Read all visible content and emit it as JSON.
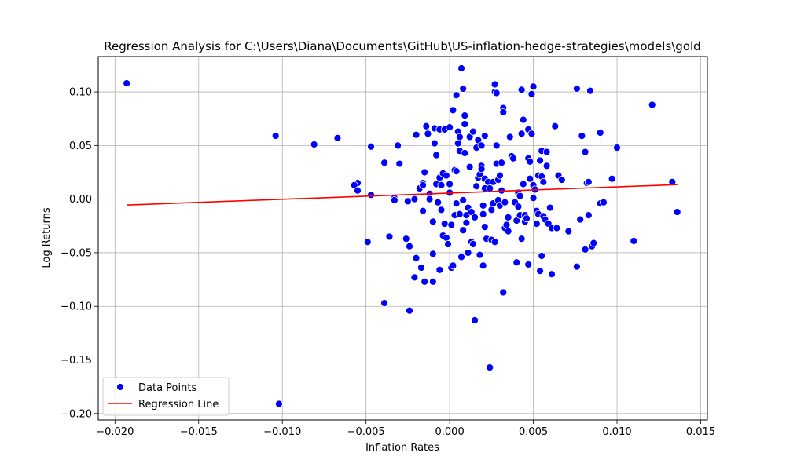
{
  "chart_data": {
    "type": "scatter",
    "title": "Regression Analysis for C:\\Users\\Diana\\Documents\\GitHub\\US-inflation-hedge-strategies\\models\\gold",
    "xlabel": "Inflation Rates",
    "ylabel": "Log Returns",
    "xlim": [
      -0.021,
      0.0154
    ],
    "ylim": [
      -0.206,
      0.133
    ],
    "xticks": [
      -0.02,
      -0.015,
      -0.01,
      -0.005,
      0.0,
      0.005,
      0.01,
      0.015
    ],
    "xtick_labels": [
      "−0.020",
      "−0.015",
      "−0.010",
      "−0.005",
      "0.000",
      "0.005",
      "0.010",
      "0.015"
    ],
    "yticks": [
      -0.2,
      -0.15,
      -0.1,
      -0.05,
      0.0,
      0.05,
      0.1
    ],
    "ytick_labels": [
      "−0.20",
      "−0.15",
      "−0.10",
      "−0.05",
      "0.00",
      "0.05",
      "0.10"
    ],
    "grid": true,
    "legend_position": "lower-left",
    "colors": {
      "points": "#0000ff",
      "line": "#ff0000"
    },
    "series": [
      {
        "name": "Data Points",
        "kind": "scatter",
        "points": [
          [
            -0.0193,
            0.108
          ],
          [
            -0.0104,
            0.059
          ],
          [
            -0.0081,
            0.051
          ],
          [
            -0.0067,
            0.057
          ],
          [
            -0.0102,
            -0.191
          ],
          [
            -0.0055,
            0.015
          ],
          [
            -0.0057,
            0.013
          ],
          [
            -0.0055,
            0.008
          ],
          [
            -0.0049,
            -0.04
          ],
          [
            -0.0047,
            0.049
          ],
          [
            -0.0047,
            0.004
          ],
          [
            -0.0039,
            0.034
          ],
          [
            -0.0039,
            -0.097
          ],
          [
            -0.0036,
            -0.035
          ],
          [
            -0.0033,
            0.001
          ],
          [
            -0.0033,
            -0.001
          ],
          [
            -0.0031,
            0.05
          ],
          [
            -0.003,
            0.033
          ],
          [
            -0.0026,
            -0.037
          ],
          [
            -0.0025,
            -0.002
          ],
          [
            -0.0024,
            -0.044
          ],
          [
            -0.0024,
            -0.104
          ],
          [
            -0.0021,
            0.0
          ],
          [
            -0.0021,
            -0.073
          ],
          [
            -0.002,
            -0.055
          ],
          [
            -0.002,
            0.06
          ],
          [
            -0.0018,
            0.01
          ],
          [
            -0.0017,
            -0.064
          ],
          [
            -0.0016,
            0.015
          ],
          [
            -0.0016,
            0.013
          ],
          [
            -0.0016,
            -0.011
          ],
          [
            -0.0015,
            -0.077
          ],
          [
            -0.0014,
            0.068
          ],
          [
            -0.0013,
            0.061
          ],
          [
            -0.0012,
            0.005
          ],
          [
            -0.0015,
            0.025
          ],
          [
            -0.0012,
            0.0
          ],
          [
            -0.001,
            -0.077
          ],
          [
            -0.001,
            -0.021
          ],
          [
            -0.001,
            -0.051
          ],
          [
            -0.0009,
            0.066
          ],
          [
            -0.0009,
            0.052
          ],
          [
            -0.0008,
            0.041
          ],
          [
            -0.0008,
            0.014
          ],
          [
            -0.0007,
            -0.003
          ],
          [
            -0.0006,
            -0.066
          ],
          [
            -0.0006,
            0.065
          ],
          [
            -0.0006,
            0.02
          ],
          [
            -0.0005,
            -0.01
          ],
          [
            -0.0005,
            0.013
          ],
          [
            -0.0004,
            0.024
          ],
          [
            -0.0004,
            -0.034
          ],
          [
            -0.0003,
            0.065
          ],
          [
            -0.0003,
            -0.023
          ],
          [
            -0.0002,
            0.022
          ],
          [
            -0.0002,
            -0.036
          ],
          [
            -0.0001,
            -0.042
          ],
          [
            0.0,
            0.067
          ],
          [
            0.0,
            0.014
          ],
          [
            0.0,
            0.006
          ],
          [
            0.0001,
            -0.024
          ],
          [
            0.0001,
            -0.064
          ],
          [
            0.0002,
            -0.062
          ],
          [
            0.0002,
            0.083
          ],
          [
            0.0003,
            0.027
          ],
          [
            0.0003,
            -0.015
          ],
          [
            0.0004,
            0.097
          ],
          [
            0.0004,
            0.026
          ],
          [
            0.0004,
            -0.004
          ],
          [
            0.0005,
            0.052
          ],
          [
            0.0005,
            0.063
          ],
          [
            0.0006,
            0.045
          ],
          [
            0.0006,
            0.058
          ],
          [
            0.0006,
            -0.014
          ],
          [
            0.0007,
            0.122
          ],
          [
            0.0007,
            -0.054
          ],
          [
            0.0008,
            0.103
          ],
          [
            0.0008,
            -0.001
          ],
          [
            0.0008,
            -0.029
          ],
          [
            0.0009,
            0.078
          ],
          [
            0.0009,
            0.07
          ],
          [
            0.0009,
            0.043
          ],
          [
            0.001,
            -0.015
          ],
          [
            0.001,
            -0.022
          ],
          [
            0.0011,
            -0.008
          ],
          [
            0.0011,
            -0.05
          ],
          [
            0.0012,
            0.058
          ],
          [
            0.0012,
            0.03
          ],
          [
            0.0013,
            -0.012
          ],
          [
            0.0013,
            -0.04
          ],
          [
            0.0014,
            0.063
          ],
          [
            0.0014,
            -0.042
          ],
          [
            0.0015,
            -0.113
          ],
          [
            0.0015,
            -0.017
          ],
          [
            0.0016,
            0.048
          ],
          [
            0.0016,
            0.012
          ],
          [
            0.0017,
            0.055
          ],
          [
            0.0017,
            0.02
          ],
          [
            0.0018,
            0.023
          ],
          [
            0.0018,
            -0.052
          ],
          [
            0.0019,
            0.05
          ],
          [
            0.0019,
            0.031
          ],
          [
            0.0019,
            0.028
          ],
          [
            0.002,
            -0.006
          ],
          [
            0.002,
            -0.014
          ],
          [
            0.002,
            -0.062
          ],
          [
            0.0021,
            0.059
          ],
          [
            0.0021,
            0.019
          ],
          [
            0.0021,
            0.01
          ],
          [
            0.0021,
            -0.026
          ],
          [
            0.0022,
            -0.037
          ],
          [
            0.0023,
            0.016
          ],
          [
            0.0024,
            0.01
          ],
          [
            0.0024,
            -0.157
          ],
          [
            0.0025,
            -0.038
          ],
          [
            0.0025,
            -0.01
          ],
          [
            0.0026,
            0.016
          ],
          [
            0.0026,
            -0.004
          ],
          [
            0.0027,
            0.107
          ],
          [
            0.0027,
            0.1
          ],
          [
            0.0027,
            -0.04
          ],
          [
            0.0028,
            0.099
          ],
          [
            0.0028,
            0.05
          ],
          [
            0.0028,
            0.033
          ],
          [
            0.0029,
            0.018
          ],
          [
            0.0029,
            -0.001
          ],
          [
            0.003,
            0.022
          ],
          [
            0.003,
            -0.006
          ],
          [
            0.0031,
            0.034
          ],
          [
            0.0031,
            0.008
          ],
          [
            0.0032,
            0.085
          ],
          [
            0.0032,
            0.081
          ],
          [
            0.0032,
            -0.087
          ],
          [
            0.0033,
            -0.027
          ],
          [
            0.0033,
            -0.003
          ],
          [
            0.0034,
            -0.024
          ],
          [
            0.0035,
            -0.03
          ],
          [
            0.0035,
            -0.017
          ],
          [
            0.0036,
            0.058
          ],
          [
            0.0037,
            0.04
          ],
          [
            0.0038,
            0.038
          ],
          [
            0.0039,
            -0.003
          ],
          [
            0.004,
            -0.059
          ],
          [
            0.004,
            -0.02
          ],
          [
            0.0041,
            0.006
          ],
          [
            0.0041,
            -0.007
          ],
          [
            0.0042,
            0.003
          ],
          [
            0.0042,
            -0.015
          ],
          [
            0.0043,
            0.102
          ],
          [
            0.0043,
            0.061
          ],
          [
            0.0043,
            -0.037
          ],
          [
            0.0044,
            0.074
          ],
          [
            0.0044,
            0.014
          ],
          [
            0.0045,
            -0.015
          ],
          [
            0.0045,
            -0.021
          ],
          [
            0.0046,
            -0.018
          ],
          [
            0.0047,
            0.065
          ],
          [
            0.0047,
            0.038
          ],
          [
            0.0047,
            -0.061
          ],
          [
            0.0048,
            0.035
          ],
          [
            0.0048,
            0.019
          ],
          [
            0.0049,
            0.098
          ],
          [
            0.0049,
            0.061
          ],
          [
            0.005,
            0.105
          ],
          [
            0.005,
            0.013
          ],
          [
            0.005,
            0.001
          ],
          [
            0.0051,
            0.009
          ],
          [
            0.0052,
            -0.011
          ],
          [
            0.0052,
            -0.023
          ],
          [
            0.0053,
            0.022
          ],
          [
            0.0053,
            -0.014
          ],
          [
            0.0054,
            0.036
          ],
          [
            0.0054,
            -0.067
          ],
          [
            0.0055,
            0.045
          ],
          [
            0.0055,
            0.021
          ],
          [
            0.0055,
            -0.053
          ],
          [
            0.0056,
            0.016
          ],
          [
            0.0056,
            -0.016
          ],
          [
            0.0057,
            -0.019
          ],
          [
            0.0058,
            0.044
          ],
          [
            0.0058,
            0.031
          ],
          [
            0.0059,
            -0.023
          ],
          [
            0.006,
            -0.008
          ],
          [
            0.0061,
            -0.07
          ],
          [
            0.0061,
            -0.027
          ],
          [
            0.0063,
            0.068
          ],
          [
            0.0064,
            -0.027
          ],
          [
            0.0065,
            0.022
          ],
          [
            0.0067,
            0.018
          ],
          [
            0.0071,
            -0.03
          ],
          [
            0.0076,
            0.103
          ],
          [
            0.0076,
            -0.063
          ],
          [
            0.0078,
            -0.019
          ],
          [
            0.0079,
            0.059
          ],
          [
            0.0081,
            0.044
          ],
          [
            0.0081,
            -0.047
          ],
          [
            0.0082,
            0.015
          ],
          [
            0.0083,
            0.016
          ],
          [
            0.0083,
            -0.015
          ],
          [
            0.0084,
            0.101
          ],
          [
            0.0085,
            -0.044
          ],
          [
            0.0086,
            -0.041
          ],
          [
            0.009,
            0.062
          ],
          [
            0.009,
            -0.004
          ],
          [
            0.0092,
            -0.003
          ],
          [
            0.0097,
            0.019
          ],
          [
            0.01,
            0.048
          ],
          [
            0.011,
            -0.039
          ],
          [
            0.0121,
            0.088
          ],
          [
            0.0133,
            0.016
          ],
          [
            0.0136,
            -0.012
          ]
        ]
      },
      {
        "name": "Regression Line",
        "kind": "line",
        "points": [
          [
            -0.0193,
            -0.0055
          ],
          [
            0.0136,
            0.0135
          ]
        ]
      }
    ]
  }
}
